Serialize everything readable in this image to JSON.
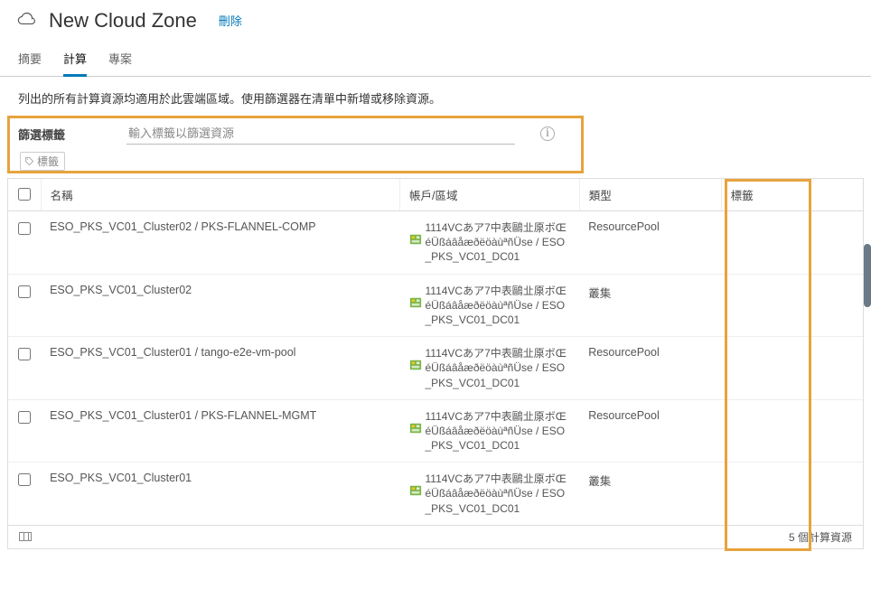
{
  "header": {
    "title": "New Cloud Zone",
    "delete_label": "刪除"
  },
  "tabs": {
    "summary": "摘要",
    "compute": "計算",
    "project": "專案"
  },
  "description": "列出的所有計算資源均適用於此雲端區域。使用篩選器在清單中新增或移除資源。",
  "filter": {
    "label": "篩選標籤",
    "placeholder": "輸入標籤以篩選資源",
    "chip_label": "標籤"
  },
  "columns": {
    "name": "名稱",
    "account": "帳戶/區域",
    "type": "類型",
    "tags": "標籤"
  },
  "account_text": "1114VCあア7中表鷗㐀厡ボŒéÜßáâåæðëöàùªñÜse / ESO_PKS_VC01_DC01",
  "rows": [
    {
      "name": "ESO_PKS_VC01_Cluster02 / PKS-FLANNEL-COMP",
      "type": "ResourcePool"
    },
    {
      "name": "ESO_PKS_VC01_Cluster02",
      "type": "叢集"
    },
    {
      "name": "ESO_PKS_VC01_Cluster01 / tango-e2e-vm-pool",
      "type": "ResourcePool"
    },
    {
      "name": "ESO_PKS_VC01_Cluster01 / PKS-FLANNEL-MGMT",
      "type": "ResourcePool"
    },
    {
      "name": "ESO_PKS_VC01_Cluster01",
      "type": "叢集"
    }
  ],
  "footer": {
    "count_label": "5 個計算資源"
  },
  "colors": {
    "highlight": "#e8a33d",
    "link": "#0079b8",
    "icon_green": "#7ab648",
    "icon_yellow": "#f5c518"
  }
}
